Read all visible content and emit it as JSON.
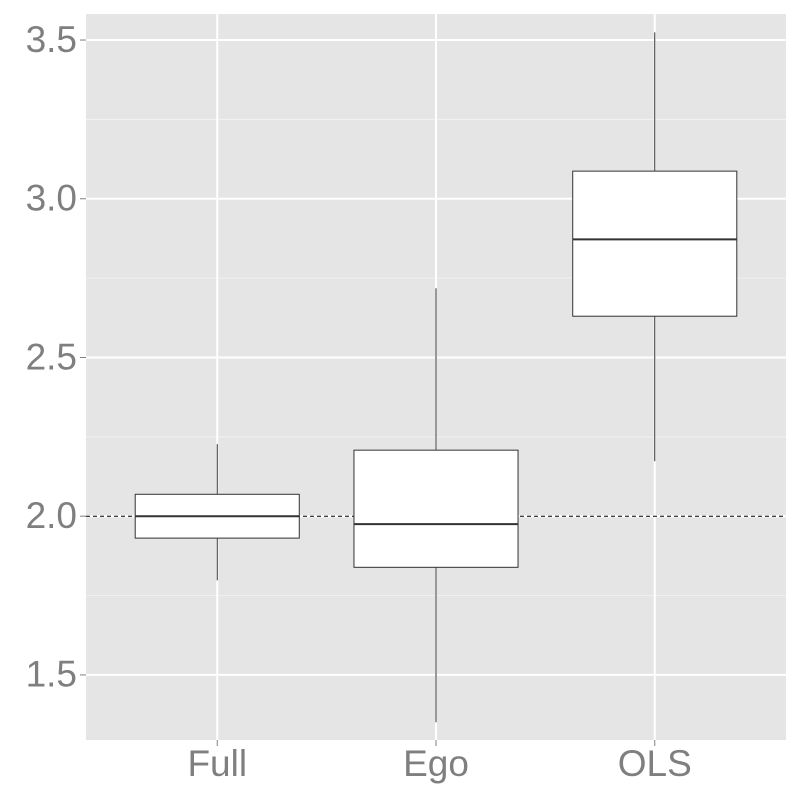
{
  "chart_data": {
    "type": "boxplot",
    "categories": [
      "Full",
      "Ego",
      "OLS"
    ],
    "values": [
      {
        "min": 1.798,
        "q1": 1.931,
        "median": 2.0,
        "q3": 2.069,
        "max": 2.227
      },
      {
        "min": 1.351,
        "q1": 1.839,
        "median": 1.975,
        "q3": 2.208,
        "max": 2.718
      },
      {
        "min": 2.173,
        "q1": 2.63,
        "median": 2.872,
        "q3": 3.087,
        "max": 3.524
      }
    ],
    "ylim": [
      1.295,
      3.582
    ],
    "yticks": [
      {
        "value": 1.5,
        "label": "1.5"
      },
      {
        "value": 2.0,
        "label": "2.0"
      },
      {
        "value": 2.5,
        "label": "2.5"
      },
      {
        "value": 3.0,
        "label": "3.0"
      },
      {
        "value": 3.5,
        "label": "3.5"
      }
    ],
    "hline": 2,
    "grid": true
  }
}
